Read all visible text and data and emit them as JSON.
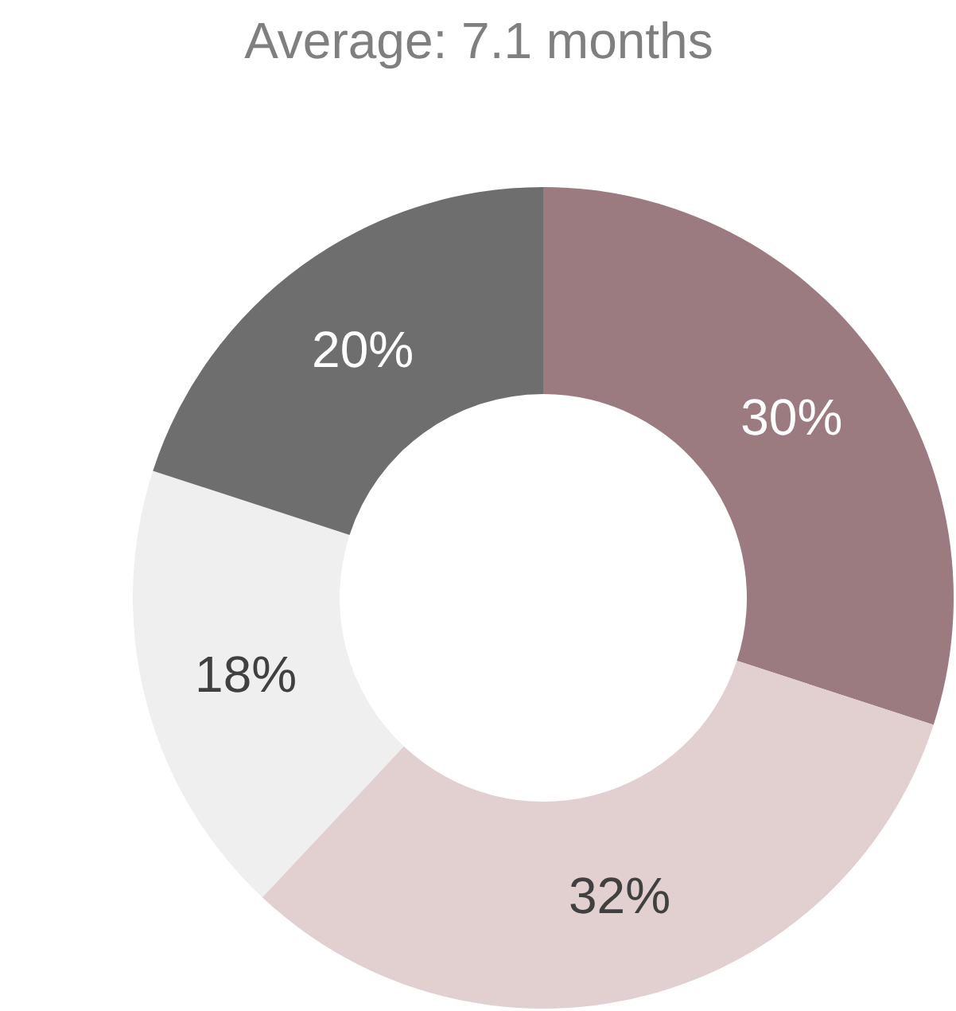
{
  "chart_data": {
    "type": "donut",
    "title": "Average: 7.1 months",
    "categories": [
      null,
      null,
      null,
      null
    ],
    "values": [
      30,
      32,
      18,
      20
    ],
    "colors": [
      "#9b7b7f",
      "#e2cfd0",
      "#efefef",
      "#6e6e6e"
    ],
    "value_labels": [
      "30%",
      "32%",
      "18%",
      "20%"
    ]
  }
}
